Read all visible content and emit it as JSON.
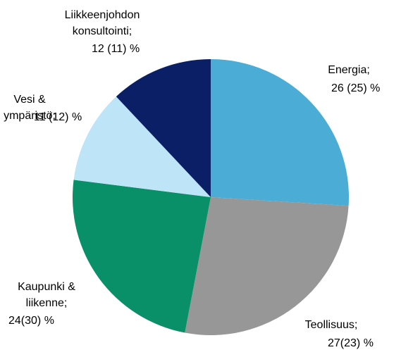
{
  "chart_data": {
    "type": "pie",
    "categories": [
      "Energia;",
      "Teollisuus;",
      "Kaupunki & liikenne;",
      "Vesi & ympäristö;",
      "Liikkeenjohdon konsultointi;"
    ],
    "values": [
      26,
      27,
      24,
      11,
      12
    ],
    "value_labels": [
      "26 (25) %",
      "27(23) %",
      "24(30) %",
      "11 (12) %",
      "12 (11) %"
    ],
    "colors": [
      "#4badd6",
      "#979797",
      "#0a9068",
      "#bee4f8",
      "#0a1f66"
    ]
  }
}
